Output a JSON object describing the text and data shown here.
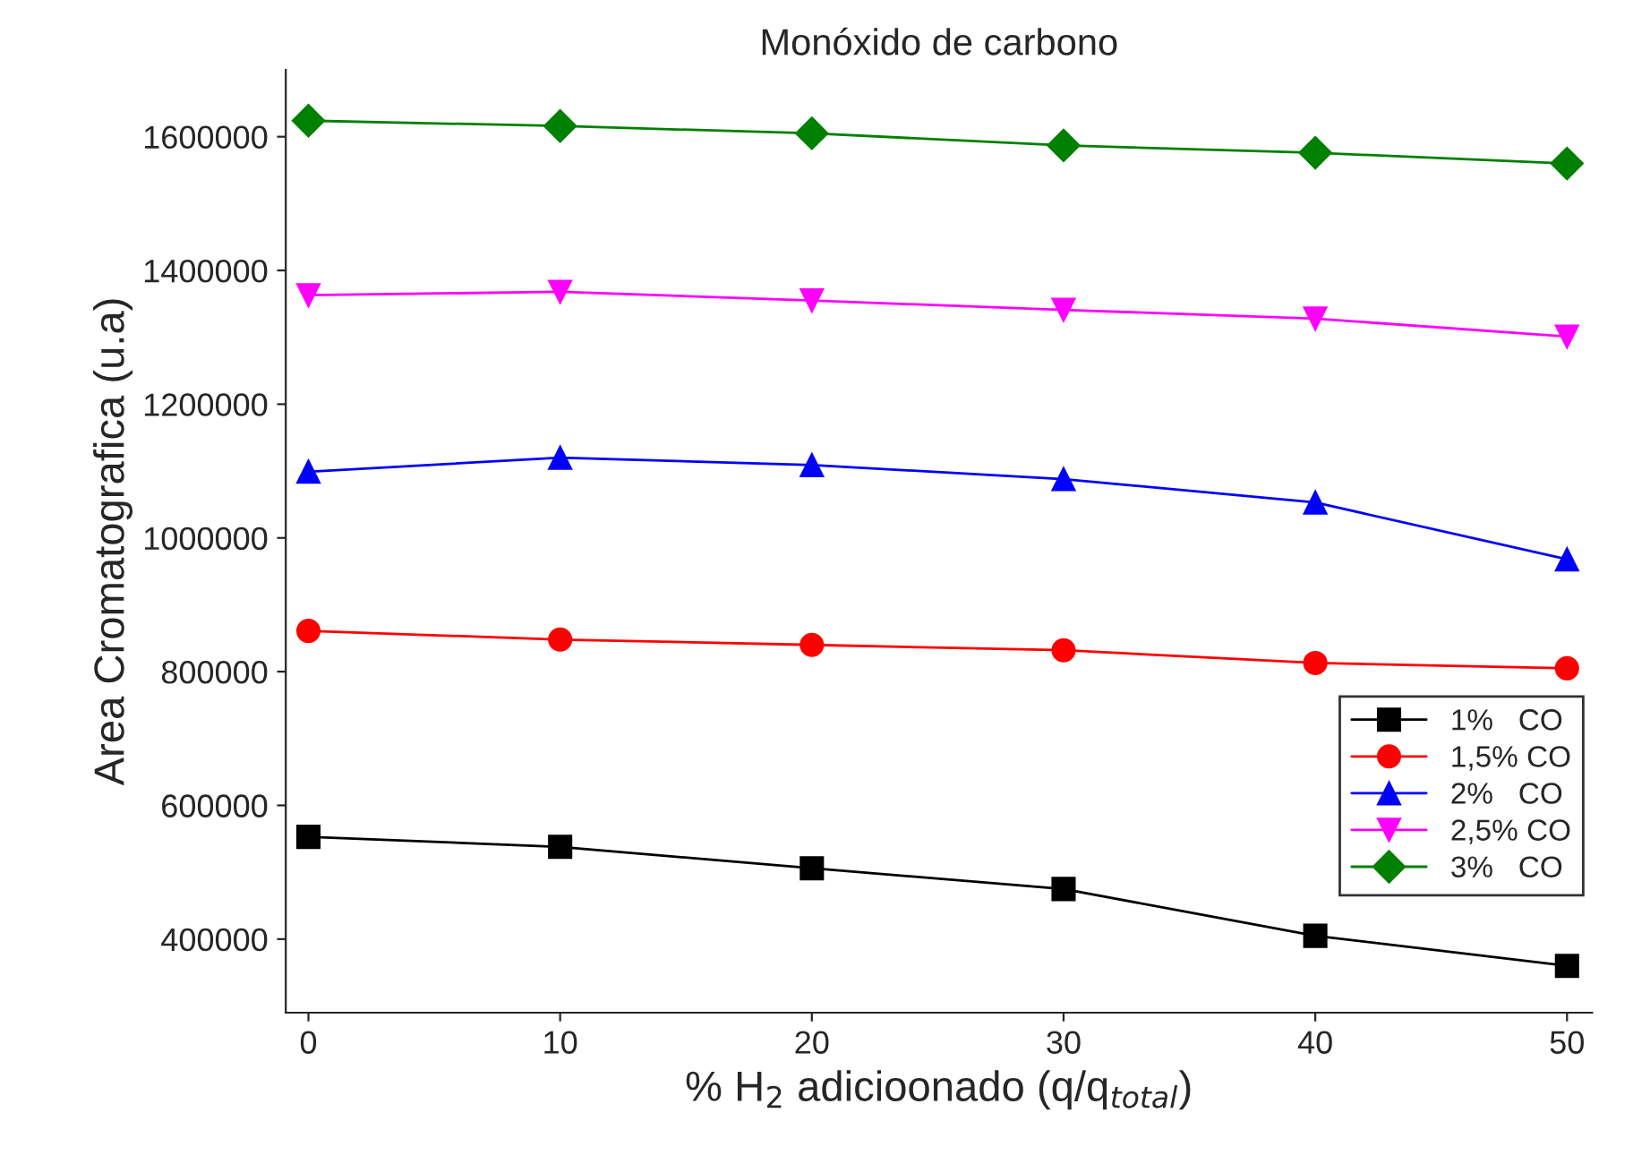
{
  "chart_data": {
    "type": "line",
    "title": "Monóxido de carbono",
    "xlabel": "% H$_{2}$ adicioonado (q/q$_{total}$)",
    "ylabel": "Area Cromatografica (u.a)",
    "x": [
      0,
      10,
      20,
      30,
      40,
      50
    ],
    "series": [
      {
        "name": "1%   CO",
        "color": "#000000",
        "marker": "square",
        "values": [
          553000,
          538000,
          506000,
          475000,
          405000,
          360000
        ]
      },
      {
        "name": "1,5% CO",
        "color": "#ff0000",
        "marker": "circle",
        "values": [
          861000,
          848000,
          840000,
          832000,
          813000,
          805000
        ]
      },
      {
        "name": "2%   CO",
        "color": "#0000ff",
        "marker": "triangle",
        "values": [
          1099000,
          1120000,
          1109000,
          1088000,
          1053000,
          968000
        ]
      },
      {
        "name": "2,5% CO",
        "color": "#ff00ff",
        "marker": "triangle_down",
        "values": [
          1363000,
          1368000,
          1355000,
          1341000,
          1328000,
          1301000
        ]
      },
      {
        "name": "3%   CO",
        "color": "#008000",
        "marker": "diamond",
        "values": [
          1624000,
          1616000,
          1605000,
          1587000,
          1576000,
          1560000
        ]
      }
    ],
    "xlim": [
      -0.9,
      51
    ],
    "xticks": [
      0,
      10,
      20,
      30,
      40,
      50
    ],
    "ylim": [
      290000,
      1700000
    ],
    "yticks": [
      400000,
      600000,
      800000,
      1000000,
      1200000,
      1400000,
      1600000
    ],
    "grid": false,
    "legend": "lower right",
    "line_style": "solid"
  }
}
